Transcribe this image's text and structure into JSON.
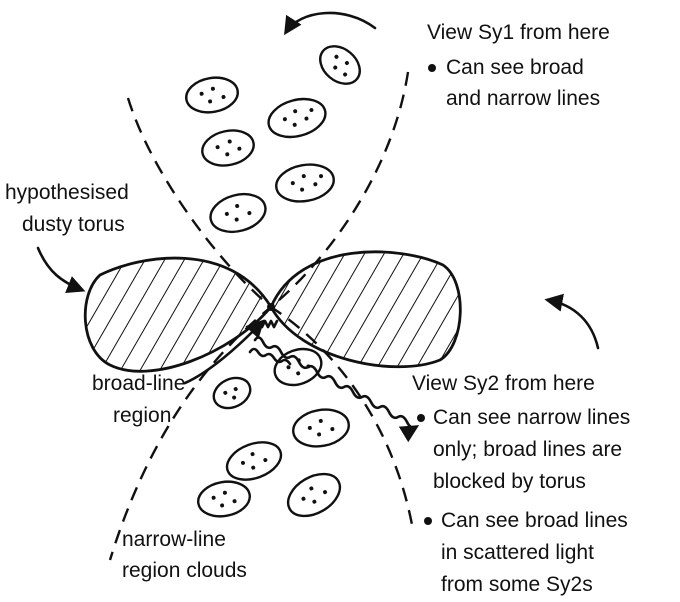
{
  "labels": {
    "sy1_title": "View Sy1 from here",
    "sy1_note_1": "Can see broad",
    "sy1_note_2": "and narrow lines",
    "torus_1": "hypothesised",
    "torus_2": "dusty torus",
    "blr_1": "broad-line",
    "blr_2": "region",
    "sy2_title": "View Sy2 from here",
    "sy2_note1_1": "Can see narrow lines",
    "sy2_note1_2": "only; broad lines are",
    "sy2_note1_3": "blocked by torus",
    "sy2_note2_1": "Can see broad lines",
    "sy2_note2_2": "in scattered light",
    "sy2_note2_3": "from some Sy2s",
    "nlr_1": "narrow-line",
    "nlr_2": "region clouds"
  },
  "colors": {
    "ink": "#111111",
    "background": "#ffffff"
  },
  "icons": [
    "curved-arrow-icon",
    "bullet-icon"
  ]
}
